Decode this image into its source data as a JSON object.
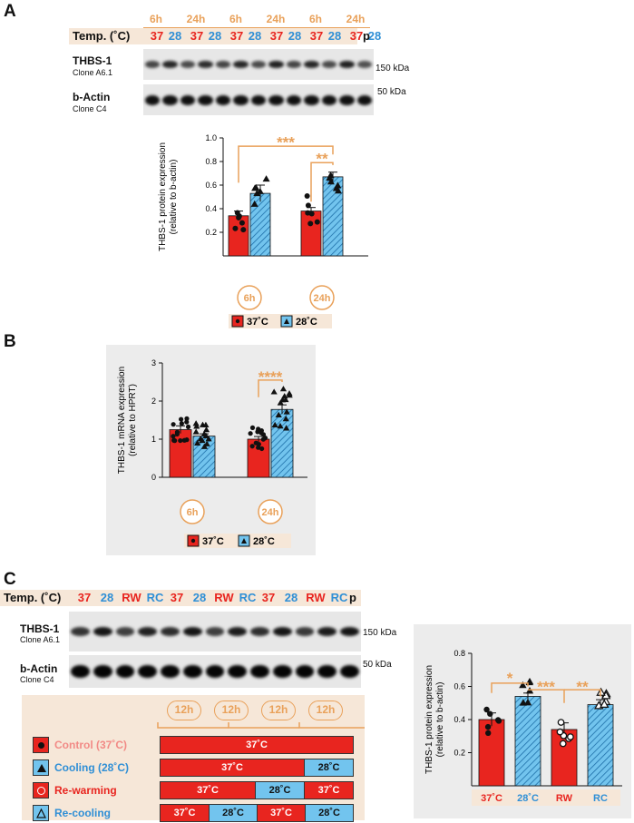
{
  "panelA": {
    "letter": "A",
    "temp_label": "Temp. (˚C)",
    "times": [
      "6h",
      "24h",
      "6h",
      "24h",
      "6h",
      "24h"
    ],
    "temps": [
      "37",
      "28",
      "37",
      "28",
      "37",
      "28",
      "37",
      "28",
      "37",
      "28",
      "37",
      "28"
    ],
    "p_label": "p",
    "blot1_title": "THBS-1",
    "blot1_sub": "Clone A6.1",
    "blot1_kda": "150 kDa",
    "blot2_title": "b-Actin",
    "blot2_sub": "Clone C4",
    "blot2_kda": "50 kDa",
    "legend": [
      "37˚C",
      "28˚C"
    ]
  },
  "panelB": {
    "letter": "B",
    "legend": [
      "37˚C",
      "28˚C"
    ]
  },
  "panelC": {
    "letter": "C",
    "temp_label": "Temp. (˚C)",
    "temps": [
      "37",
      "28",
      "RW",
      "RC",
      "37",
      "28",
      "RW",
      "RC",
      "37",
      "28",
      "RW",
      "RC"
    ],
    "p_label": "p",
    "blot1_title": "THBS-1",
    "blot1_sub": "Clone A6.1",
    "blot1_kda": "150 kDa",
    "blot2_title": "b-Actin",
    "blot2_sub": "Clone C4",
    "blot2_kda": "50 kDa",
    "schedule": {
      "intervals": [
        "12h",
        "12h",
        "12h",
        "12h"
      ],
      "rows": [
        {
          "label": "Control (37˚C)",
          "segments": [
            "37˚C"
          ]
        },
        {
          "label": "Cooling (28˚C)",
          "segments": [
            "37˚C",
            "28˚C"
          ]
        },
        {
          "label": "Re-warming",
          "segments": [
            "37˚C",
            "28˚C",
            "37˚C"
          ]
        },
        {
          "label": "Re-cooling",
          "segments": [
            "37˚C",
            "28˚C",
            "37˚C",
            "28˚C"
          ]
        }
      ]
    }
  },
  "colors": {
    "red": "#e8251f",
    "blue": "#72c4ee",
    "orange": "#e9a15a",
    "band": "#f6e7d8"
  },
  "chart_data": [
    {
      "id": "A",
      "type": "bar",
      "ylabel": "THBS-1 protein expression (relative to b-actin)",
      "ylim": [
        0,
        1.0
      ],
      "yticks": [
        "0.2",
        "0.4",
        "0.6",
        "0.8",
        "1.0"
      ],
      "groups": [
        "6h",
        "24h"
      ],
      "series": [
        {
          "name": "37˚C",
          "values": [
            0.34,
            0.38
          ],
          "sem": [
            0.04,
            0.03
          ]
        },
        {
          "name": "28˚C",
          "values": [
            0.53,
            0.67
          ],
          "sem": [
            0.07,
            0.04
          ]
        }
      ],
      "significance": [
        "***",
        "**"
      ]
    },
    {
      "id": "B",
      "type": "bar",
      "ylabel": "THBS-1 mRNA expression (relative to HPRT)",
      "ylim": [
        0,
        3
      ],
      "yticks": [
        "0",
        "1",
        "2",
        "3"
      ],
      "groups": [
        "6h",
        "24h"
      ],
      "series": [
        {
          "name": "37˚C",
          "values": [
            1.25,
            1.0
          ],
          "sem": [
            0.1,
            0.07
          ]
        },
        {
          "name": "28˚C",
          "values": [
            1.08,
            1.78
          ],
          "sem": [
            0.06,
            0.12
          ]
        }
      ],
      "significance": [
        "****"
      ]
    },
    {
      "id": "C",
      "type": "bar",
      "ylabel": "THBS-1 protein expression (relative to b-actin)",
      "ylim": [
        0,
        0.8
      ],
      "yticks": [
        "0.2",
        "0.4",
        "0.6",
        "0.8"
      ],
      "categories": [
        "37˚C",
        "28˚C",
        "RW",
        "RC"
      ],
      "values": [
        0.4,
        0.54,
        0.34,
        0.49
      ],
      "sem": [
        0.04,
        0.02,
        0.04,
        0.03
      ],
      "significance": [
        "*",
        "***",
        "**"
      ]
    }
  ]
}
